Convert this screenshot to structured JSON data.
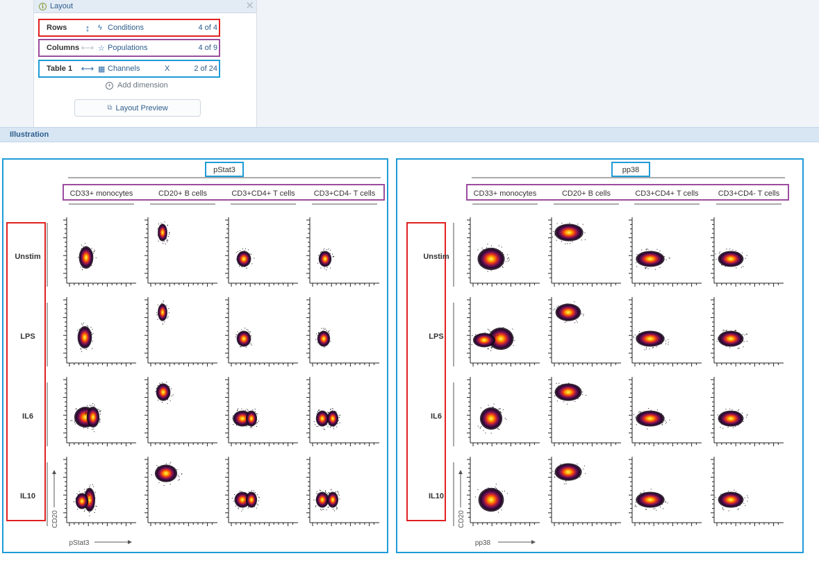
{
  "layout_panel": {
    "title": "Layout",
    "rows": {
      "label": "Rows",
      "dimension": "Conditions",
      "count": "4 of 4"
    },
    "columns": {
      "label": "Columns",
      "dimension": "Populations",
      "count": "4 of 9"
    },
    "table": {
      "label": "Table 1",
      "dimension": "Channels",
      "x": "X",
      "count": "2 of 24"
    },
    "add_dimension": "Add dimension",
    "preview_button": "Layout Preview"
  },
  "illustration": {
    "label": "Illustration"
  },
  "tables": [
    {
      "channel": "pStat3",
      "x_axis_label": "pStat3",
      "y_axis_label": "CD20"
    },
    {
      "channel": "pp38",
      "x_axis_label": "pp38",
      "y_axis_label": "CD20"
    }
  ],
  "columns": [
    "CD33+ monocytes",
    "CD20+ B cells",
    "CD3+CD4+ T cells",
    "CD3+CD4- T cells"
  ],
  "rows": [
    "Unstim",
    "LPS",
    "IL6",
    "IL10"
  ],
  "colors": {
    "rows_highlight": "#e02020",
    "columns_highlight": "#9b4c9e",
    "table_highlight": "#1e9bd7"
  }
}
